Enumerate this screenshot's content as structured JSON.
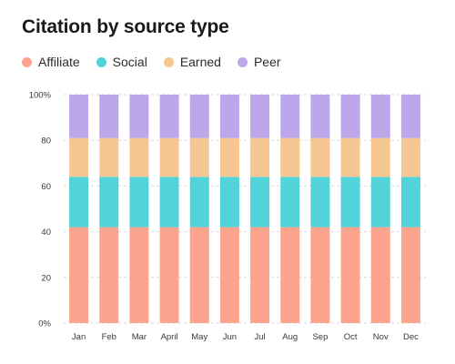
{
  "chart_data": {
    "type": "bar",
    "stacked": true,
    "normalized": true,
    "title": "Citation by source type",
    "xlabel": "",
    "ylabel": "",
    "categories": [
      "Jan",
      "Feb",
      "Mar",
      "April",
      "May",
      "Jun",
      "Jul",
      "Aug",
      "Sep",
      "Oct",
      "Nov",
      "Dec"
    ],
    "series": [
      {
        "name": "Affiliate",
        "color": "#fca48e",
        "values": [
          42,
          42,
          42,
          42,
          42,
          42,
          42,
          42,
          42,
          42,
          42,
          42
        ]
      },
      {
        "name": "Social",
        "color": "#52d3d9",
        "values": [
          22,
          22,
          22,
          22,
          22,
          22,
          22,
          22,
          22,
          22,
          22,
          22
        ]
      },
      {
        "name": "Earned",
        "color": "#f7c793",
        "values": [
          17,
          17,
          17,
          17,
          17,
          17,
          17,
          17,
          17,
          17,
          17,
          17
        ]
      },
      {
        "name": "Peer",
        "color": "#bba7ea",
        "values": [
          19,
          19,
          19,
          19,
          19,
          19,
          19,
          19,
          19,
          19,
          19,
          19
        ]
      }
    ],
    "ylim": [
      0,
      100
    ],
    "yticks": [
      0,
      20,
      40,
      60,
      80,
      100
    ],
    "ytick_labels": [
      "0%",
      "20",
      "40",
      "60",
      "80",
      "100%"
    ],
    "grid": "horizontal-dashed",
    "legend_position": "top-left"
  }
}
